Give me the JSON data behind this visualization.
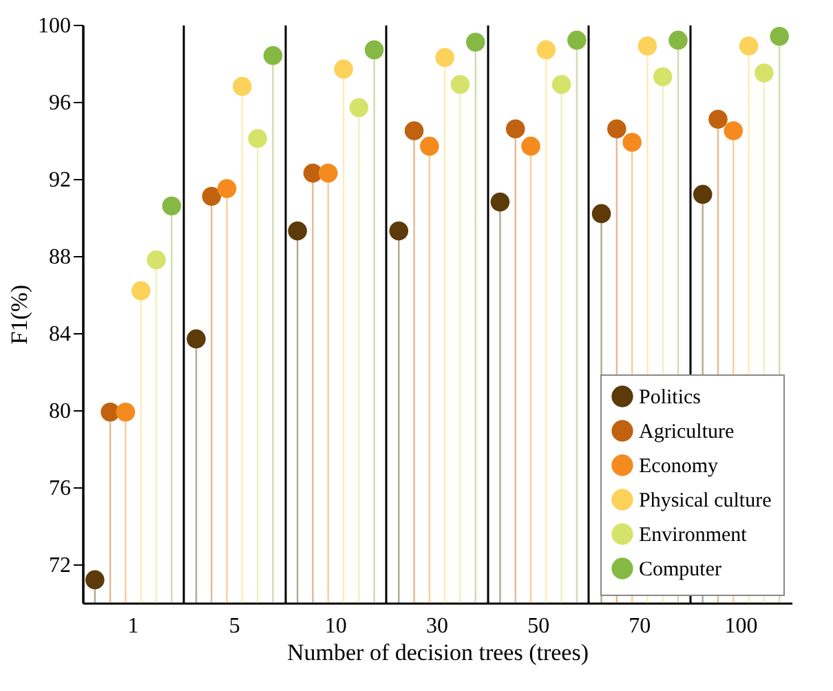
{
  "chart_data": {
    "type": "lollipop",
    "xlabel": "Number of decision trees (trees)",
    "ylabel": "F1(%)",
    "categories": [
      "1",
      "5",
      "10",
      "30",
      "50",
      "70",
      "100"
    ],
    "ylim": [
      70,
      100
    ],
    "yticks": [
      72,
      76,
      80,
      84,
      88,
      92,
      96,
      100
    ],
    "grid": "x",
    "legend": "bottom right",
    "marker": "circle",
    "series": [
      {
        "name": "Politics",
        "color": "#5c3a0a",
        "values": [
          71.2,
          83.7,
          89.3,
          89.3,
          90.8,
          90.2,
          91.2
        ]
      },
      {
        "name": "Agriculture",
        "color": "#c0620f",
        "values": [
          79.9,
          91.1,
          92.3,
          94.5,
          94.6,
          94.6,
          95.1
        ]
      },
      {
        "name": "Economy",
        "color": "#f58b1f",
        "values": [
          79.9,
          91.5,
          92.3,
          93.7,
          93.7,
          93.9,
          94.5
        ]
      },
      {
        "name": "Physical culture",
        "color": "#fcd25a",
        "values": [
          86.2,
          96.8,
          97.7,
          98.3,
          98.7,
          98.9,
          98.9
        ]
      },
      {
        "name": "Environment",
        "color": "#d6e36a",
        "values": [
          87.8,
          94.1,
          95.7,
          96.9,
          96.9,
          97.3,
          97.5
        ]
      },
      {
        "name": "Computer",
        "color": "#86b944",
        "values": [
          90.6,
          98.4,
          98.7,
          99.1,
          99.2,
          99.2,
          99.4
        ]
      }
    ]
  }
}
